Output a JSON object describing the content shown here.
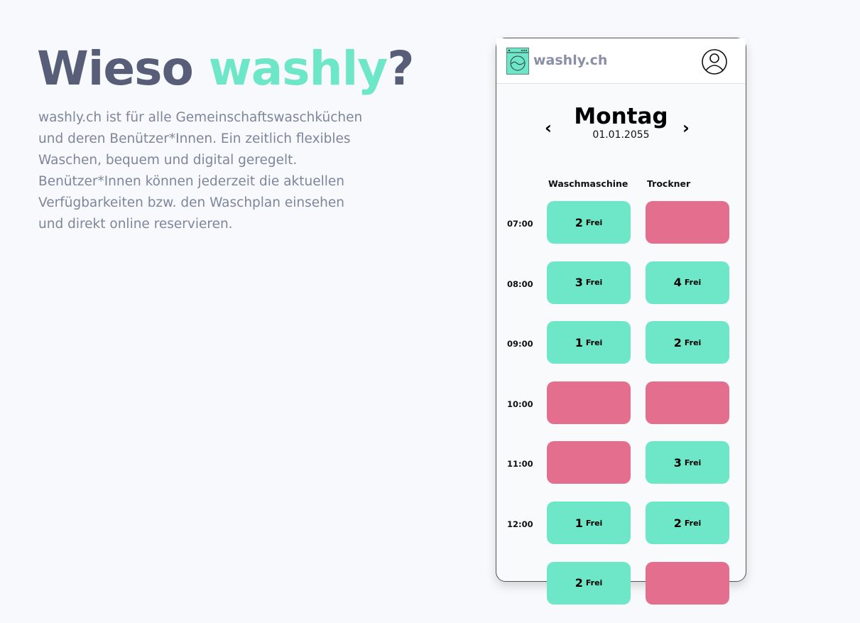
{
  "hero": {
    "title_prefix": "Wieso ",
    "title_accent": "washly",
    "title_suffix": "?",
    "description": "washly.ch ist für alle Gemeinschaftswaschküchen und deren Benützer*Innen. Ein zeitlich flexibles Waschen, bequem und digital geregelt. Benützer*Innen können jederzeit die aktuellen Verfügbarkeiten bzw. den Waschplan einsehen und direkt online reservieren."
  },
  "colors": {
    "accent": "#6ee6c8",
    "free": "#6ee6c8",
    "booked": "#e46e8e",
    "title": "#585d78"
  },
  "app": {
    "brand": "washly.ch",
    "day": "Montag",
    "date": "01.01.2055",
    "prev": "‹",
    "next": "›",
    "columns": [
      "Waschmaschine",
      "Trockner"
    ],
    "free_label": "Frei",
    "rows": [
      {
        "time": "07:00",
        "slots": [
          {
            "count": "2"
          },
          {
            "count": null
          }
        ]
      },
      {
        "time": "08:00",
        "slots": [
          {
            "count": "3"
          },
          {
            "count": "4"
          }
        ]
      },
      {
        "time": "09:00",
        "slots": [
          {
            "count": "1"
          },
          {
            "count": "2"
          }
        ]
      },
      {
        "time": "10:00",
        "slots": [
          {
            "count": null
          },
          {
            "count": null
          }
        ]
      },
      {
        "time": "11:00",
        "slots": [
          {
            "count": null
          },
          {
            "count": "3"
          }
        ]
      },
      {
        "time": "12:00",
        "slots": [
          {
            "count": "1"
          },
          {
            "count": "2"
          }
        ]
      },
      {
        "time": "",
        "slots": [
          {
            "count": "2"
          },
          {
            "count": null
          }
        ]
      }
    ]
  }
}
